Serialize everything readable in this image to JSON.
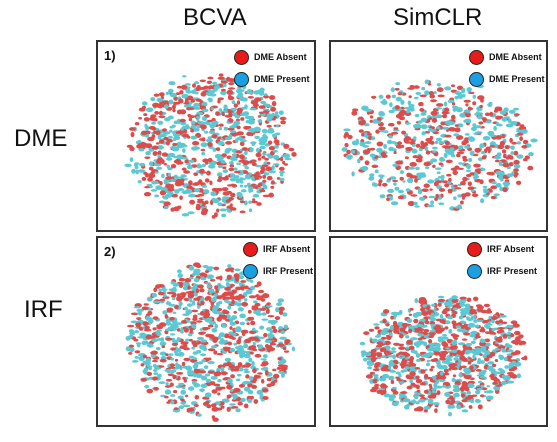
{
  "columns": [
    "BCVA",
    "SimCLR"
  ],
  "rows": [
    "DME",
    "IRF"
  ],
  "colors": {
    "absent": "#dd4b4b",
    "present": "#5bc9d3",
    "absent_swatch": "#e81b1b",
    "present_swatch": "#1aa0e2"
  },
  "chart_data": [
    {
      "type": "scatter",
      "panel_label": "1)",
      "model": "BCVA",
      "biomarker": "DME",
      "legend": [
        "DME Absent",
        "DME Present"
      ],
      "legend_position": "top-right",
      "grid": false,
      "axes_visible": false,
      "series": [
        {
          "name": "DME Absent",
          "color": "#dd4b4b"
        },
        {
          "name": "DME Present",
          "color": "#5bc9d3"
        }
      ]
    },
    {
      "type": "scatter",
      "panel_label": "",
      "model": "SimCLR",
      "biomarker": "DME",
      "legend": [
        "DME Absent",
        "DME Present"
      ],
      "legend_position": "top-right",
      "grid": false,
      "axes_visible": false,
      "series": [
        {
          "name": "DME Absent",
          "color": "#dd4b4b"
        },
        {
          "name": "DME Present",
          "color": "#5bc9d3"
        }
      ]
    },
    {
      "type": "scatter",
      "panel_label": "2)",
      "model": "BCVA",
      "biomarker": "IRF",
      "legend": [
        "IRF Absent",
        "IRF Present"
      ],
      "legend_position": "top-right",
      "grid": false,
      "axes_visible": false,
      "series": [
        {
          "name": "IRF Absent",
          "color": "#dd4b4b"
        },
        {
          "name": "IRF Present",
          "color": "#5bc9d3"
        }
      ]
    },
    {
      "type": "scatter",
      "panel_label": "",
      "model": "SimCLR",
      "biomarker": "IRF",
      "legend": [
        "IRF Absent",
        "IRF Present"
      ],
      "legend_position": "top-right",
      "grid": false,
      "axes_visible": false,
      "series": [
        {
          "name": "IRF Absent",
          "color": "#dd4b4b"
        },
        {
          "name": "IRF Present",
          "color": "#5bc9d3"
        }
      ]
    }
  ]
}
